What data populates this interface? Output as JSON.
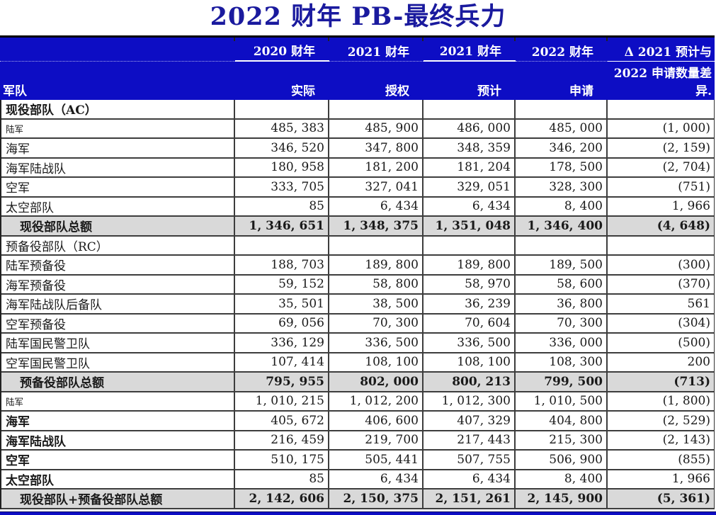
{
  "title": "2022 财年 PB-最终兵力",
  "colors": {
    "header_blue": "#0D0DC4",
    "title_blue": "#1A1A9E",
    "total_row_gray": "#D9D9D9",
    "grid_line": "#3D3D3D"
  },
  "table": {
    "row_label_header": "军队",
    "year_columns": [
      {
        "year": "2020 财年",
        "sub": "实际",
        "underlined": true
      },
      {
        "year": "2021 财年",
        "sub": "授权",
        "underlined": false
      },
      {
        "year": "2021 财年",
        "sub": "预计",
        "underlined": true
      },
      {
        "year": "2022 财年",
        "sub": "申请",
        "underlined": false
      }
    ],
    "delta_column": {
      "line1": "Δ 2021 预计与",
      "line2": "2022 申请数量差",
      "line3": "异."
    },
    "rows": [
      {
        "label": "现役部队（AC）",
        "style": "section-bold",
        "values": [
          "",
          "",
          "",
          "",
          ""
        ]
      },
      {
        "label": "陆军",
        "style": "small",
        "values": [
          "485, 383",
          "485, 900",
          "486, 000",
          "485, 000",
          "(1, 000)"
        ]
      },
      {
        "label": "海军",
        "style": "normal",
        "values": [
          "346, 520",
          "347, 800",
          "348, 359",
          "346, 200",
          "(2, 159)"
        ]
      },
      {
        "label": "海军陆战队",
        "style": "normal",
        "values": [
          "180, 958",
          "181, 200",
          "181, 204",
          "178, 500",
          "(2, 704)"
        ]
      },
      {
        "label": "空军",
        "style": "normal",
        "values": [
          "333, 705",
          "327, 041",
          "329, 051",
          "328, 300",
          "(751)"
        ]
      },
      {
        "label": "太空部队",
        "style": "normal",
        "values": [
          "85",
          "6, 434",
          "6, 434",
          "8, 400",
          "1, 966"
        ]
      },
      {
        "label": "现役部队总额",
        "style": "total",
        "values": [
          "1, 346, 651",
          "1, 348, 375",
          "1, 351, 048",
          "1, 346, 400",
          "(4, 648)"
        ]
      },
      {
        "label": "预备役部队（RC）",
        "style": "section",
        "values": [
          "",
          "",
          "",
          "",
          ""
        ]
      },
      {
        "label": "陆军预备役",
        "style": "normal",
        "values": [
          "188, 703",
          "189, 800",
          "189, 800",
          "189, 500",
          "(300)"
        ]
      },
      {
        "label": "海军预备役",
        "style": "normal",
        "values": [
          "59, 152",
          "58, 800",
          "58, 970",
          "58, 600",
          "(370)"
        ]
      },
      {
        "label": "海军陆战队后备队",
        "style": "normal",
        "values": [
          "35, 501",
          "38, 500",
          "36, 239",
          "36, 800",
          "561"
        ]
      },
      {
        "label": "空军预备役",
        "style": "normal",
        "values": [
          "69, 056",
          "70, 300",
          "70, 604",
          "70, 300",
          "(304)"
        ]
      },
      {
        "label": "陆军国民警卫队",
        "style": "normal",
        "values": [
          "336, 129",
          "336, 500",
          "336, 500",
          "336, 000",
          "(500)"
        ]
      },
      {
        "label": "空军国民警卫队",
        "style": "normal",
        "values": [
          "107, 414",
          "108, 100",
          "108, 100",
          "108, 300",
          "200"
        ]
      },
      {
        "label": "预备役部队总额",
        "style": "total",
        "values": [
          "795, 955",
          "802, 000",
          "800, 213",
          "799, 500",
          "(713)"
        ]
      },
      {
        "label": "陆军",
        "style": "small",
        "values": [
          "1, 010, 215",
          "1, 012, 200",
          "1, 012, 300",
          "1, 010, 500",
          "(1, 800)"
        ]
      },
      {
        "label": "海军",
        "style": "bold",
        "values": [
          "405, 672",
          "406, 600",
          "407, 329",
          "404, 800",
          "(2, 529)"
        ]
      },
      {
        "label": "海军陆战队",
        "style": "bold",
        "values": [
          "216, 459",
          "219, 700",
          "217, 443",
          "215, 300",
          "(2, 143)"
        ]
      },
      {
        "label": "空军",
        "style": "bold",
        "values": [
          "510, 175",
          "505, 441",
          "507, 755",
          "506, 900",
          "(855)"
        ]
      },
      {
        "label": "太空部队",
        "style": "bold",
        "values": [
          "85",
          "6, 434",
          "6, 434",
          "8, 400",
          "1, 966"
        ]
      },
      {
        "label": "现役部队+预备役部队总额",
        "style": "total",
        "values": [
          "2, 142, 606",
          "2, 150, 375",
          "2, 151, 261",
          "2, 145, 900",
          "(5, 361)"
        ]
      }
    ]
  }
}
